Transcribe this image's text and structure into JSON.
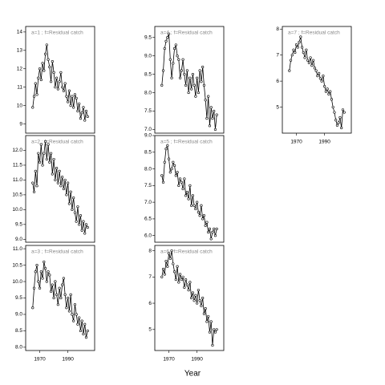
{
  "xlabel": "Year",
  "chart_data": [
    {
      "type": "line",
      "title": "a=1 ; f=Residual catch",
      "color": "#000000",
      "x": [
        1965,
        1966,
        1967,
        1968,
        1969,
        1970,
        1971,
        1972,
        1973,
        1974,
        1975,
        1976,
        1977,
        1978,
        1979,
        1980,
        1981,
        1982,
        1983,
        1984,
        1985,
        1986,
        1987,
        1988,
        1989,
        1990,
        1991,
        1992,
        1993,
        1994,
        1995,
        1996,
        1997,
        1998,
        1999,
        2000,
        2001,
        2002,
        2003,
        2004
      ],
      "values": [
        9.9,
        10.5,
        11.2,
        10.6,
        11.5,
        12.0,
        11.4,
        12.3,
        11.9,
        12.8,
        13.3,
        12.5,
        12.1,
        11.3,
        12.4,
        11.8,
        11.0,
        11.5,
        10.9,
        11.3,
        11.8,
        11.0,
        10.8,
        11.2,
        10.5,
        10.2,
        10.8,
        10.0,
        10.5,
        9.9,
        10.6,
        10.4,
        9.7,
        10.1,
        9.3,
        9.6,
        9.9,
        9.2,
        9.7,
        9.4
      ],
      "xlim": [
        1960,
        2009
      ],
      "ylim": [
        8.5,
        14.3
      ],
      "yticks": [
        9,
        10,
        11,
        12,
        13,
        14
      ]
    },
    {
      "type": "line",
      "title": "a=2 ; f=Residual catch",
      "color": "#000000",
      "x": [
        1965,
        1966,
        1967,
        1968,
        1969,
        1970,
        1971,
        1972,
        1973,
        1974,
        1975,
        1976,
        1977,
        1978,
        1979,
        1980,
        1981,
        1982,
        1983,
        1984,
        1985,
        1986,
        1987,
        1988,
        1989,
        1990,
        1991,
        1992,
        1993,
        1994,
        1995,
        1996,
        1997,
        1998,
        1999,
        2000,
        2001,
        2002,
        2003,
        2004
      ],
      "values": [
        10.9,
        10.6,
        11.3,
        10.8,
        11.9,
        11.6,
        12.2,
        11.5,
        11.9,
        12.3,
        11.7,
        12.2,
        11.6,
        11.9,
        11.2,
        11.7,
        11.0,
        11.4,
        10.9,
        11.3,
        10.8,
        11.1,
        10.7,
        11.0,
        10.5,
        10.9,
        10.2,
        10.6,
        10.0,
        10.4,
        9.9,
        9.6,
        10.1,
        9.5,
        9.8,
        9.3,
        9.6,
        9.2,
        9.5,
        9.4
      ],
      "xlim": [
        1960,
        2009
      ],
      "ylim": [
        8.9,
        12.5
      ],
      "yticks": [
        {
          "value": 9,
          "label": "9.0"
        },
        9.5,
        {
          "value": 10,
          "label": "10.0"
        },
        10.5,
        {
          "value": 11,
          "label": "11.0"
        },
        11.5,
        {
          "value": 12,
          "label": "12.0"
        }
      ]
    },
    {
      "type": "line",
      "title": "a=3 ; f=Residual catch",
      "color": "#000000",
      "x": [
        1965,
        1966,
        1967,
        1968,
        1969,
        1970,
        1971,
        1972,
        1973,
        1974,
        1975,
        1976,
        1977,
        1978,
        1979,
        1980,
        1981,
        1982,
        1983,
        1984,
        1985,
        1986,
        1987,
        1988,
        1989,
        1990,
        1991,
        1992,
        1993,
        1994,
        1995,
        1996,
        1997,
        1998,
        1999,
        2000,
        2001,
        2002,
        2003,
        2004
      ],
      "values": [
        9.2,
        9.8,
        10.3,
        10.5,
        10.0,
        9.8,
        10.3,
        10.1,
        10.6,
        10.4,
        10.0,
        10.3,
        10.2,
        9.7,
        9.9,
        9.5,
        10.0,
        9.6,
        9.3,
        9.8,
        9.5,
        9.9,
        10.1,
        9.6,
        9.2,
        9.5,
        9.1,
        9.6,
        9.0,
        8.8,
        9.3,
        9.0,
        8.7,
        8.9,
        8.5,
        8.8,
        8.4,
        8.7,
        8.3,
        8.5
      ],
      "xlim": [
        1960,
        2009
      ],
      "ylim": [
        7.9,
        11.1
      ],
      "xticks": [
        1970,
        1990
      ],
      "yticks": [
        {
          "value": 8,
          "label": "8.0"
        },
        8.5,
        {
          "value": 9,
          "label": "9.0"
        },
        9.5,
        {
          "value": 10,
          "label": "10.0"
        },
        10.5,
        {
          "value": 11,
          "label": "11.0"
        }
      ]
    },
    {
      "type": "line",
      "title": "a=4 ; f=Residual catch",
      "color": "#000000",
      "x": [
        1965,
        1966,
        1967,
        1968,
        1969,
        1970,
        1971,
        1972,
        1973,
        1974,
        1975,
        1976,
        1977,
        1978,
        1979,
        1980,
        1981,
        1982,
        1983,
        1984,
        1985,
        1986,
        1987,
        1988,
        1989,
        1990,
        1991,
        1992,
        1993,
        1994,
        1995,
        1996,
        1997,
        1998,
        1999,
        2000,
        2001,
        2002,
        2003,
        2004
      ],
      "values": [
        8.2,
        8.6,
        9.2,
        9.4,
        9.5,
        9.6,
        8.9,
        8.4,
        8.8,
        9.2,
        9.3,
        9.0,
        8.9,
        8.4,
        8.6,
        8.9,
        8.5,
        8.2,
        8.6,
        8.0,
        8.4,
        8.1,
        8.5,
        8.2,
        7.9,
        8.4,
        8.0,
        8.6,
        8.3,
        8.7,
        8.2,
        7.8,
        7.3,
        7.9,
        7.1,
        7.6,
        7.3,
        7.5,
        7.0,
        7.4
      ],
      "xlim": [
        1960,
        2009
      ],
      "ylim": [
        6.9,
        9.8
      ],
      "yticks": [
        {
          "value": 7,
          "label": "7.0"
        },
        7.5,
        {
          "value": 8,
          "label": "8.0"
        },
        8.5,
        {
          "value": 9,
          "label": "9.0"
        },
        9.5
      ]
    },
    {
      "type": "line",
      "title": "a=5 ; f=Residual catch",
      "color": "#000000",
      "x": [
        1965,
        1966,
        1967,
        1968,
        1969,
        1970,
        1971,
        1972,
        1973,
        1974,
        1975,
        1976,
        1977,
        1978,
        1979,
        1980,
        1981,
        1982,
        1983,
        1984,
        1985,
        1986,
        1987,
        1988,
        1989,
        1990,
        1991,
        1992,
        1993,
        1994,
        1995,
        1996,
        1997,
        1998,
        1999,
        2000,
        2001,
        2002,
        2003,
        2004
      ],
      "values": [
        7.8,
        7.6,
        8.2,
        8.6,
        8.7,
        8.3,
        7.9,
        8.0,
        8.2,
        8.1,
        7.8,
        7.9,
        7.5,
        7.7,
        7.6,
        7.4,
        7.7,
        7.2,
        7.3,
        7.1,
        7.5,
        6.9,
        7.2,
        6.9,
        6.8,
        7.0,
        6.7,
        6.6,
        6.9,
        6.5,
        6.6,
        6.3,
        6.4,
        6.1,
        6.2,
        5.9,
        6.1,
        6.2,
        6.0,
        6.2
      ],
      "xlim": [
        1960,
        2009
      ],
      "ylim": [
        5.8,
        9.0
      ],
      "yticks": [
        {
          "value": 6,
          "label": "6.0"
        },
        6.5,
        {
          "value": 7,
          "label": "7.0"
        },
        7.5,
        {
          "value": 8,
          "label": "8.0"
        },
        8.5,
        {
          "value": 9,
          "label": "9.0"
        }
      ]
    },
    {
      "type": "line",
      "title": "a=6 ; f=Residual catch",
      "color": "#000000",
      "x": [
        1965,
        1966,
        1967,
        1968,
        1969,
        1970,
        1971,
        1972,
        1973,
        1974,
        1975,
        1976,
        1977,
        1978,
        1979,
        1980,
        1981,
        1982,
        1983,
        1984,
        1985,
        1986,
        1987,
        1988,
        1989,
        1990,
        1991,
        1992,
        1993,
        1994,
        1995,
        1996,
        1997,
        1998,
        1999,
        2000,
        2001,
        2002,
        2003,
        2004
      ],
      "values": [
        7.0,
        7.3,
        7.1,
        7.6,
        7.4,
        7.9,
        7.7,
        8.0,
        7.5,
        7.2,
        6.9,
        7.4,
        6.8,
        7.1,
        6.9,
        7.0,
        6.6,
        6.9,
        6.7,
        6.5,
        6.8,
        6.2,
        6.4,
        6.1,
        6.3,
        6.0,
        6.5,
        6.1,
        5.9,
        6.2,
        5.6,
        5.8,
        5.3,
        5.5,
        4.9,
        5.3,
        4.4,
        5.0,
        4.9,
        5.0
      ],
      "xlim": [
        1960,
        2009
      ],
      "ylim": [
        4.2,
        8.2
      ],
      "xticks": [
        1970,
        1990
      ],
      "yticks": [
        5,
        6,
        7,
        8
      ]
    },
    {
      "type": "line",
      "title": "a=7 ; f=Residual catch",
      "color": "#000000",
      "x": [
        1965,
        1966,
        1967,
        1968,
        1969,
        1970,
        1971,
        1972,
        1973,
        1974,
        1975,
        1976,
        1977,
        1978,
        1979,
        1980,
        1981,
        1982,
        1983,
        1984,
        1985,
        1986,
        1987,
        1988,
        1989,
        1990,
        1991,
        1992,
        1993,
        1994,
        1995,
        1996,
        1997,
        1998,
        1999,
        2000,
        2001,
        2002,
        2003,
        2004
      ],
      "values": [
        6.4,
        6.8,
        7.0,
        7.2,
        7.1,
        7.4,
        7.3,
        7.5,
        7.7,
        7.3,
        7.1,
        6.9,
        7.2,
        6.8,
        6.7,
        6.9,
        6.6,
        6.8,
        6.5,
        6.4,
        6.2,
        6.3,
        6.1,
        6.0,
        6.2,
        5.8,
        5.6,
        5.7,
        5.5,
        5.6,
        5.3,
        5.0,
        4.8,
        4.5,
        4.3,
        4.4,
        4.6,
        4.2,
        4.9,
        4.8
      ],
      "xlim": [
        1960,
        2009
      ],
      "ylim": [
        4.0,
        8.1
      ],
      "xticks": [
        1970,
        1990
      ],
      "yticks": [
        5,
        6,
        7,
        8
      ]
    }
  ]
}
